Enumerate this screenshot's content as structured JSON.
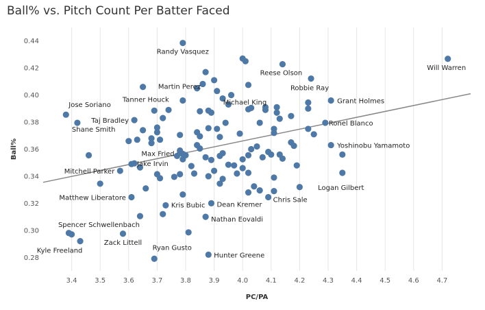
{
  "chart_data": {
    "type": "scatter",
    "title": "Ball% vs. Pitch Count Per Batter Faced",
    "xlabel": "PC/PA",
    "ylabel": "Ball%",
    "xlim": [
      3.3,
      4.8
    ],
    "ylim": [
      0.27,
      0.45
    ],
    "x_ticks": [
      "3.4",
      "3.5",
      "3.6",
      "3.7",
      "3.8",
      "3.9",
      "4.0",
      "4.1",
      "4.2",
      "4.3",
      "4.4",
      "4.5",
      "4.6",
      "4.7"
    ],
    "y_ticks": [
      "0.28",
      "0.30",
      "0.32",
      "0.34",
      "0.36",
      "0.38",
      "0.40",
      "0.42",
      "0.44"
    ],
    "grid": "vertical",
    "marker_color": "#4e79a7",
    "trend_color": "#888888",
    "trendline": [
      {
        "x": 3.3,
        "y": 0.3355
      },
      {
        "x": 4.8,
        "y": 0.401
      }
    ],
    "labeled_points": [
      {
        "name": "Randy Vasquez",
        "x": 3.79,
        "y": 0.4385
      },
      {
        "name": "Will Warren",
        "x": 4.72,
        "y": 0.4268
      },
      {
        "name": "Reese Olson",
        "x": 4.14,
        "y": 0.4228
      },
      {
        "name": "Martin Perez",
        "x": 3.86,
        "y": 0.4082
      },
      {
        "name": "Robbie Ray",
        "x": 4.24,
        "y": 0.4122
      },
      {
        "name": "Michael King",
        "x": 4.08,
        "y": 0.391
      },
      {
        "name": "Tanner Houck",
        "x": 3.79,
        "y": 0.396
      },
      {
        "name": "Grant Holmes",
        "x": 4.31,
        "y": 0.396
      },
      {
        "name": "Jose Soriano",
        "x": 3.38,
        "y": 0.3855
      },
      {
        "name": "Taj Bradley",
        "x": 3.62,
        "y": 0.3815
      },
      {
        "name": "Ronel Blanco",
        "x": 4.29,
        "y": 0.3795
      },
      {
        "name": "Shane Smith",
        "x": 3.42,
        "y": 0.3795
      },
      {
        "name": "Yoshinobu Yamamoto",
        "x": 4.31,
        "y": 0.363
      },
      {
        "name": "Max Fried",
        "x": 3.78,
        "y": 0.357
      },
      {
        "name": "Jake Irvin",
        "x": 3.61,
        "y": 0.349
      },
      {
        "name": "Mitchell Parker",
        "x": 3.57,
        "y": 0.344
      },
      {
        "name": "Logan Gilbert",
        "x": 4.35,
        "y": 0.3425
      },
      {
        "name": "Matthew Liberatore",
        "x": 3.61,
        "y": 0.3245
      },
      {
        "name": "Chris Sale",
        "x": 4.09,
        "y": 0.3245
      },
      {
        "name": "Kris Bubic",
        "x": 3.73,
        "y": 0.3185
      },
      {
        "name": "Dean Kremer",
        "x": 3.89,
        "y": 0.32
      },
      {
        "name": "Nathan Eovaldi",
        "x": 3.87,
        "y": 0.31
      },
      {
        "name": "Spencer Schwellenbach",
        "x": 3.64,
        "y": 0.3105
      },
      {
        "name": "Zack Littell",
        "x": 3.58,
        "y": 0.2975
      },
      {
        "name": "Kyle Freeland",
        "x": 3.43,
        "y": 0.292
      },
      {
        "name": "Ryan Gusto",
        "x": 3.69,
        "y": 0.279
      },
      {
        "name": "Hunter Greene",
        "x": 3.88,
        "y": 0.282
      }
    ],
    "points": [
      {
        "x": 3.39,
        "y": 0.298
      },
      {
        "x": 3.4,
        "y": 0.297
      },
      {
        "x": 3.46,
        "y": 0.3555
      },
      {
        "x": 3.5,
        "y": 0.3345
      },
      {
        "x": 3.62,
        "y": 0.3495
      },
      {
        "x": 3.64,
        "y": 0.3465
      },
      {
        "x": 3.6,
        "y": 0.366
      },
      {
        "x": 3.63,
        "y": 0.367
      },
      {
        "x": 3.65,
        "y": 0.374
      },
      {
        "x": 3.65,
        "y": 0.406
      },
      {
        "x": 3.68,
        "y": 0.3645
      },
      {
        "x": 3.68,
        "y": 0.368
      },
      {
        "x": 3.69,
        "y": 0.3885
      },
      {
        "x": 3.7,
        "y": 0.376
      },
      {
        "x": 3.7,
        "y": 0.3725
      },
      {
        "x": 3.71,
        "y": 0.367
      },
      {
        "x": 3.72,
        "y": 0.383
      },
      {
        "x": 3.74,
        "y": 0.389
      },
      {
        "x": 3.66,
        "y": 0.331
      },
      {
        "x": 3.7,
        "y": 0.3415
      },
      {
        "x": 3.71,
        "y": 0.3385
      },
      {
        "x": 3.72,
        "y": 0.312
      },
      {
        "x": 3.76,
        "y": 0.3395
      },
      {
        "x": 3.78,
        "y": 0.3415
      },
      {
        "x": 3.77,
        "y": 0.355
      },
      {
        "x": 3.78,
        "y": 0.359
      },
      {
        "x": 3.79,
        "y": 0.3565
      },
      {
        "x": 3.8,
        "y": 0.3555
      },
      {
        "x": 3.79,
        "y": 0.3525
      },
      {
        "x": 3.78,
        "y": 0.3705
      },
      {
        "x": 3.79,
        "y": 0.3265
      },
      {
        "x": 3.81,
        "y": 0.2985
      },
      {
        "x": 3.82,
        "y": 0.3475
      },
      {
        "x": 3.83,
        "y": 0.342
      },
      {
        "x": 3.84,
        "y": 0.363
      },
      {
        "x": 3.85,
        "y": 0.3605
      },
      {
        "x": 3.84,
        "y": 0.3725
      },
      {
        "x": 3.85,
        "y": 0.3695
      },
      {
        "x": 3.85,
        "y": 0.388
      },
      {
        "x": 3.84,
        "y": 0.405
      },
      {
        "x": 3.87,
        "y": 0.417
      },
      {
        "x": 3.88,
        "y": 0.3885
      },
      {
        "x": 3.89,
        "y": 0.387
      },
      {
        "x": 3.88,
        "y": 0.3755
      },
      {
        "x": 3.87,
        "y": 0.354
      },
      {
        "x": 3.88,
        "y": 0.34
      },
      {
        "x": 3.89,
        "y": 0.352
      },
      {
        "x": 3.9,
        "y": 0.344
      },
      {
        "x": 3.9,
        "y": 0.411
      },
      {
        "x": 3.91,
        "y": 0.403
      },
      {
        "x": 3.91,
        "y": 0.375
      },
      {
        "x": 3.92,
        "y": 0.369
      },
      {
        "x": 3.92,
        "y": 0.355
      },
      {
        "x": 3.93,
        "y": 0.357
      },
      {
        "x": 3.92,
        "y": 0.3345
      },
      {
        "x": 3.93,
        "y": 0.338
      },
      {
        "x": 3.93,
        "y": 0.3975
      },
      {
        "x": 3.94,
        "y": 0.3795
      },
      {
        "x": 3.95,
        "y": 0.393
      },
      {
        "x": 3.95,
        "y": 0.3485
      },
      {
        "x": 3.96,
        "y": 0.4
      },
      {
        "x": 3.97,
        "y": 0.348
      },
      {
        "x": 3.98,
        "y": 0.342
      },
      {
        "x": 3.99,
        "y": 0.3715
      },
      {
        "x": 4.0,
        "y": 0.3525
      },
      {
        "x": 4.0,
        "y": 0.346
      },
      {
        "x": 4.0,
        "y": 0.427
      },
      {
        "x": 4.01,
        "y": 0.425
      },
      {
        "x": 4.02,
        "y": 0.4075
      },
      {
        "x": 4.02,
        "y": 0.3895
      },
      {
        "x": 4.03,
        "y": 0.3905
      },
      {
        "x": 4.02,
        "y": 0.3425
      },
      {
        "x": 4.02,
        "y": 0.328
      },
      {
        "x": 4.02,
        "y": 0.3555
      },
      {
        "x": 4.03,
        "y": 0.36
      },
      {
        "x": 4.04,
        "y": 0.3325
      },
      {
        "x": 4.05,
        "y": 0.362
      },
      {
        "x": 4.06,
        "y": 0.3295
      },
      {
        "x": 4.06,
        "y": 0.3795
      },
      {
        "x": 4.07,
        "y": 0.354
      },
      {
        "x": 4.08,
        "y": 0.389
      },
      {
        "x": 4.09,
        "y": 0.358
      },
      {
        "x": 4.1,
        "y": 0.356
      },
      {
        "x": 4.11,
        "y": 0.339
      },
      {
        "x": 4.11,
        "y": 0.329
      },
      {
        "x": 4.11,
        "y": 0.372
      },
      {
        "x": 4.11,
        "y": 0.375
      },
      {
        "x": 4.12,
        "y": 0.387
      },
      {
        "x": 4.12,
        "y": 0.391
      },
      {
        "x": 4.13,
        "y": 0.3825
      },
      {
        "x": 4.13,
        "y": 0.356
      },
      {
        "x": 4.14,
        "y": 0.353
      },
      {
        "x": 4.17,
        "y": 0.3845
      },
      {
        "x": 4.17,
        "y": 0.365
      },
      {
        "x": 4.18,
        "y": 0.3625
      },
      {
        "x": 4.19,
        "y": 0.348
      },
      {
        "x": 4.2,
        "y": 0.332
      },
      {
        "x": 4.23,
        "y": 0.375
      },
      {
        "x": 4.23,
        "y": 0.39
      },
      {
        "x": 4.23,
        "y": 0.3945
      },
      {
        "x": 4.25,
        "y": 0.371
      },
      {
        "x": 4.35,
        "y": 0.356
      }
    ]
  }
}
